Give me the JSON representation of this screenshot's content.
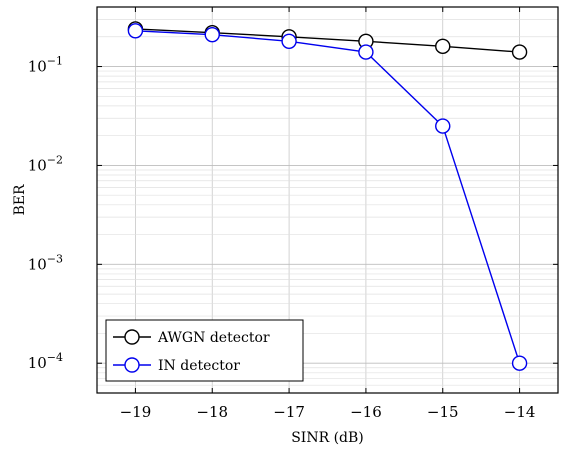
{
  "chart_data": {
    "type": "line",
    "xlabel": "SINR (dB)",
    "ylabel": "BER",
    "y_scale": "log",
    "xlim": [
      -19.5,
      -13.5
    ],
    "ylim": [
      5e-05,
      0.4
    ],
    "x_ticks": [
      -19,
      -18,
      -17,
      -16,
      -15,
      -14
    ],
    "x_tick_labels": [
      "−19",
      "−18",
      "−17",
      "−16",
      "−15",
      "−14"
    ],
    "y_ticks": [
      {
        "value": 0.1,
        "base": "10",
        "exp": "−1"
      },
      {
        "value": 0.01,
        "base": "10",
        "exp": "−2"
      },
      {
        "value": 0.001,
        "base": "10",
        "exp": "−3"
      },
      {
        "value": 0.0001,
        "base": "10",
        "exp": "−4"
      }
    ],
    "grid": true,
    "legend_position": "bottom-left",
    "x": [
      -19,
      -18,
      -17,
      -16,
      -15,
      -14
    ],
    "series": [
      {
        "name": "AWGN detector",
        "color": "#000000",
        "marker": "circle",
        "values": [
          0.24,
          0.22,
          0.2,
          0.18,
          0.16,
          0.14
        ]
      },
      {
        "name": "IN detector",
        "color": "#0000ee",
        "marker": "circle",
        "values": [
          0.23,
          0.21,
          0.18,
          0.14,
          0.025,
          0.0001
        ]
      }
    ]
  }
}
